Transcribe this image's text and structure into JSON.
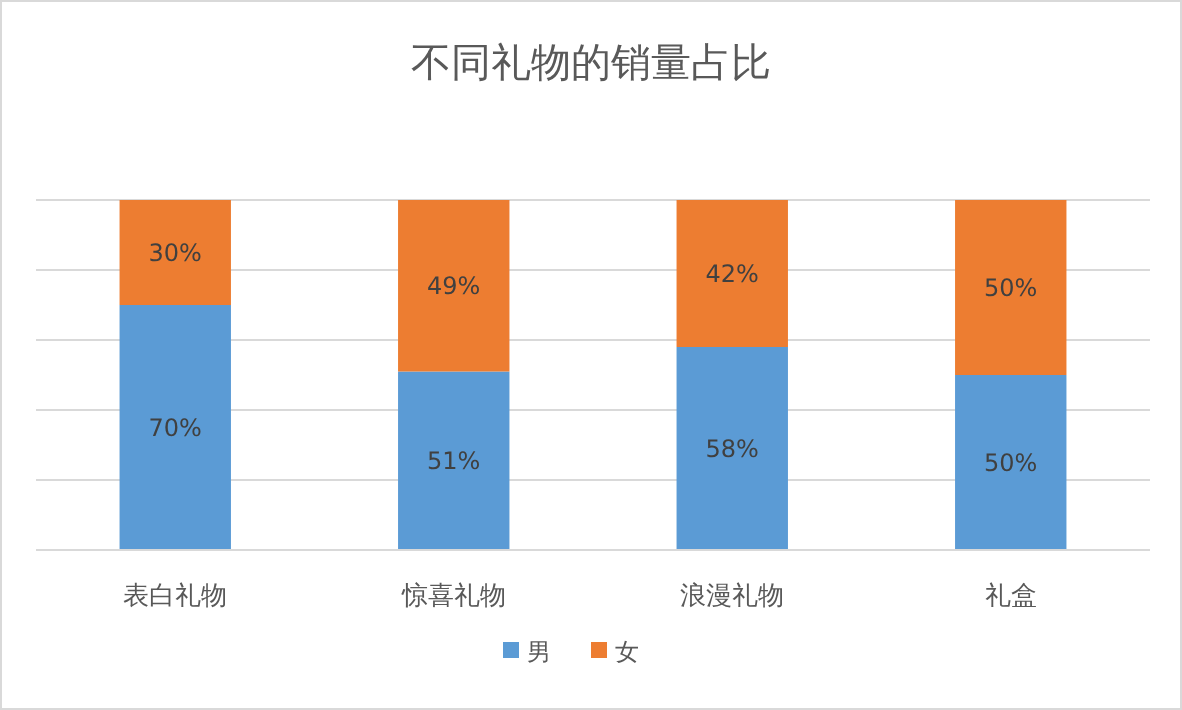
{
  "chart_data": {
    "type": "bar",
    "title": "不同礼物的销量占比",
    "stacked": true,
    "categories": [
      "表白礼物",
      "惊喜礼物",
      "浪漫礼物",
      "礼盒"
    ],
    "series": [
      {
        "name": "男",
        "color": "#5b9bd5",
        "values": [
          70,
          51,
          58,
          50
        ],
        "value_labels": [
          "70%",
          "51%",
          "58%",
          "50%"
        ]
      },
      {
        "name": "女",
        "color": "#ed7d31",
        "values": [
          30,
          49,
          42,
          50
        ],
        "value_labels": [
          "30%",
          "49%",
          "42%",
          "50%"
        ]
      }
    ],
    "ylim": [
      0,
      100
    ],
    "yticks": [
      {
        "value": 0,
        "label": null
      },
      {
        "value": 20,
        "label": null
      },
      {
        "value": 40,
        "label": null
      },
      {
        "value": 60,
        "label": null
      },
      {
        "value": 80,
        "label": null
      },
      {
        "value": 100,
        "label": null
      }
    ],
    "tick_labels": "x",
    "grid": "y",
    "legend": "bottom"
  }
}
